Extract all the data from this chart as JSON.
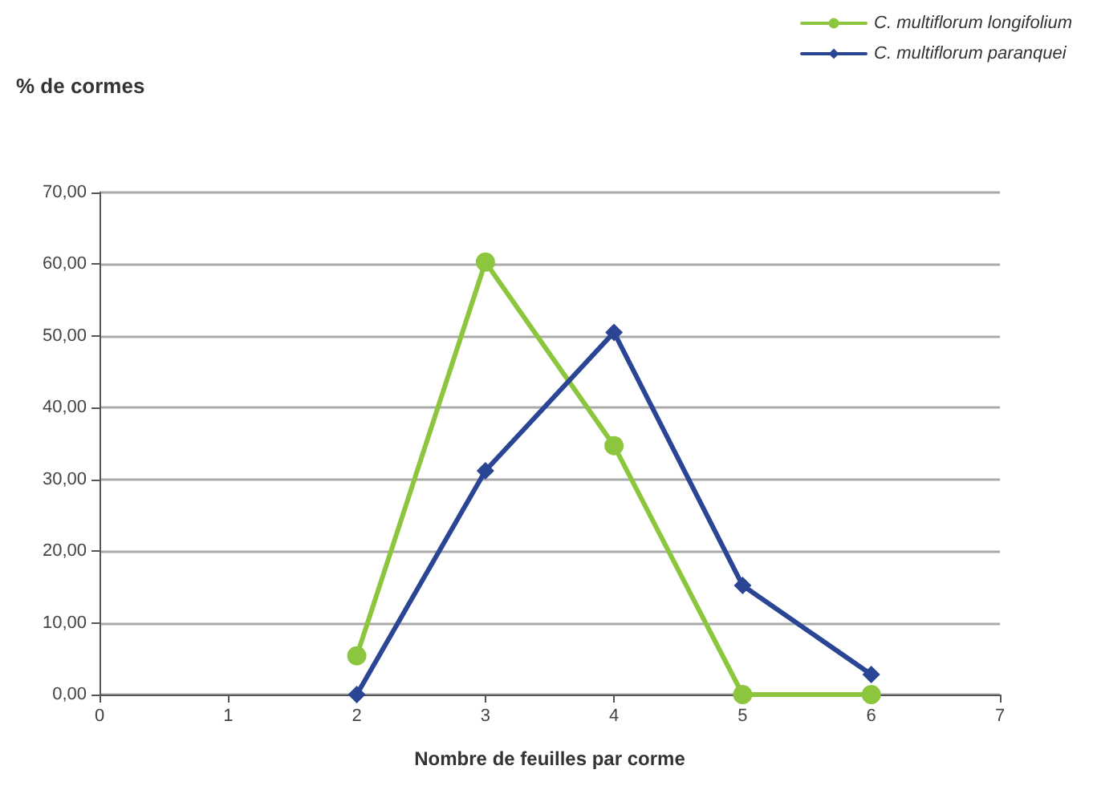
{
  "chart_data": {
    "type": "line",
    "ylabel": "% de cormes",
    "xlabel": "Nombre de feuilles par corme",
    "x": [
      2,
      3,
      4,
      5,
      6
    ],
    "series": [
      {
        "name": "C. multiflorum longifolium",
        "color": "#8cc63e",
        "marker": "circle",
        "values": [
          5.4,
          60.3,
          34.7,
          0,
          0
        ]
      },
      {
        "name": "C. multiflorum paranquei",
        "color": "#2b4595",
        "marker": "diamond",
        "values": [
          0,
          31.2,
          50.5,
          15.2,
          2.8
        ]
      }
    ],
    "xlim": [
      0,
      7
    ],
    "xticks": [
      0,
      1,
      2,
      3,
      4,
      5,
      6,
      7
    ],
    "ylim": [
      0,
      70
    ],
    "yticks": [
      {
        "value": 0,
        "label": "0,00"
      },
      {
        "value": 10,
        "label": "10,00"
      },
      {
        "value": 20,
        "label": "20,00"
      },
      {
        "value": 30,
        "label": "30,00"
      },
      {
        "value": 40,
        "label": "40,00"
      },
      {
        "value": 50,
        "label": "50,00"
      },
      {
        "value": 60,
        "label": "60,00"
      },
      {
        "value": 70,
        "label": "70,00"
      }
    ],
    "grid": "y",
    "legend": "top right",
    "line_style": "solid"
  }
}
